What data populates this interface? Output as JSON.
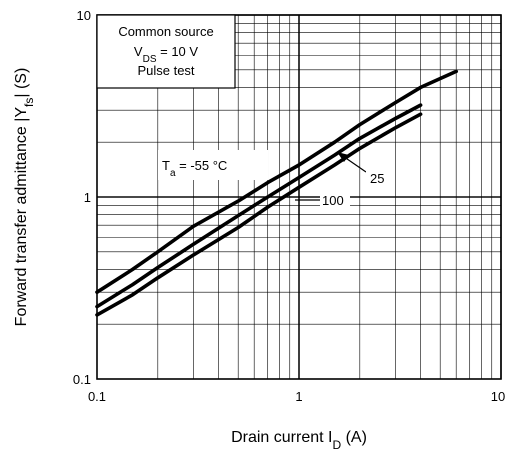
{
  "chart_data": {
    "type": "line",
    "xscale": "log",
    "yscale": "log",
    "xlim": [
      0.1,
      10
    ],
    "ylim": [
      0.1,
      10
    ],
    "grid": true,
    "xticks": [
      "0.1",
      "1",
      "10"
    ],
    "yticks": [
      "0.1",
      "1",
      "10"
    ],
    "ylabel_main": "Forward transfer admittance  |Y",
    "ylabel_sub": "fs",
    "ylabel_tail": "|  (S)",
    "xlabel_main": "Drain current  I",
    "xlabel_sub": "D",
    "xlabel_tail": "  (A)",
    "conditions": {
      "line1": "Common source",
      "line2_main": "V",
      "line2_sub": "DS",
      "line2_tail": " = 10 V",
      "line3": "Pulse test"
    },
    "series_labels": {
      "cold_main": "T",
      "cold_sub": "a",
      "cold_tail": " = -55 °C",
      "mid": "25",
      "hot": "100"
    },
    "series": [
      {
        "x": [
          0.1,
          0.15,
          0.2,
          0.3,
          0.5,
          0.7,
          1.0,
          1.5,
          2.0,
          3.0,
          4.0,
          6.0
        ],
        "y": [
          0.3,
          0.4,
          0.5,
          0.69,
          0.95,
          1.2,
          1.5,
          2.0,
          2.5,
          3.3,
          4.0,
          4.9
        ]
      },
      {
        "x": [
          0.1,
          0.15,
          0.2,
          0.3,
          0.5,
          0.7,
          1.0,
          1.5,
          2.0,
          3.0,
          4.0
        ],
        "y": [
          0.25,
          0.33,
          0.41,
          0.55,
          0.79,
          1.0,
          1.28,
          1.7,
          2.1,
          2.7,
          3.2
        ]
      },
      {
        "x": [
          0.1,
          0.15,
          0.2,
          0.3,
          0.5,
          0.7,
          1.0,
          1.5,
          2.0,
          3.0,
          4.0
        ],
        "y": [
          0.225,
          0.29,
          0.36,
          0.48,
          0.68,
          0.88,
          1.13,
          1.5,
          1.85,
          2.4,
          2.85
        ]
      }
    ]
  }
}
